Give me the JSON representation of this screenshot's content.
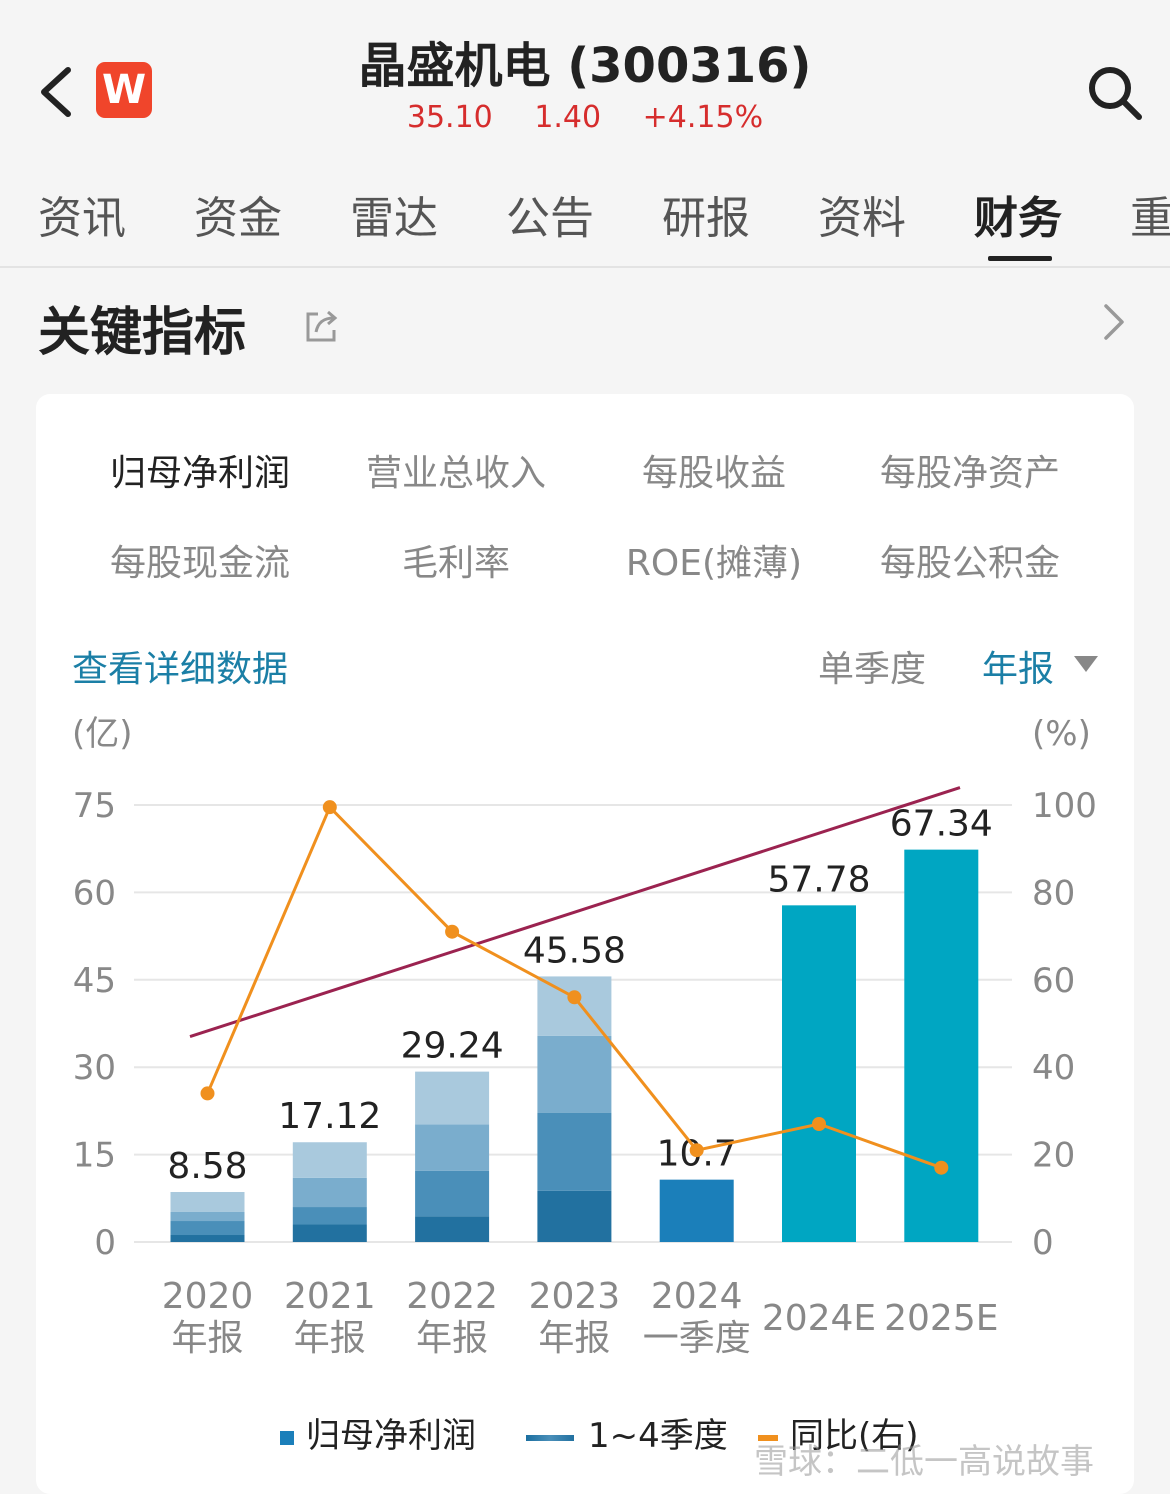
{
  "header": {
    "title": "晶盛机电 (300316)",
    "logo_text": "W",
    "price": "35.10",
    "change": "1.40",
    "change_pct": "+4.15%",
    "icons": {
      "back": "back-icon",
      "search": "search-icon"
    }
  },
  "tabs": [
    {
      "label": "资讯"
    },
    {
      "label": "资金"
    },
    {
      "label": "雷达"
    },
    {
      "label": "公告"
    },
    {
      "label": "研报"
    },
    {
      "label": "资料"
    },
    {
      "label": "财务",
      "active": true
    },
    {
      "label": "重"
    }
  ],
  "section": {
    "title": "关键指标",
    "icons": {
      "share": "share-icon",
      "more": "chevron-right-icon"
    }
  },
  "metrics": [
    {
      "label": "归母净利润",
      "active": true
    },
    {
      "label": "营业总收入"
    },
    {
      "label": "每股收益"
    },
    {
      "label": "每股净资产"
    },
    {
      "label": "每股现金流"
    },
    {
      "label": "毛利率"
    },
    {
      "label": "ROE(摊薄)"
    },
    {
      "label": "每股公积金"
    }
  ],
  "view_detail": "查看详细数据",
  "period": {
    "single": "单季度",
    "annual": "年报"
  },
  "chart_data": {
    "type": "bar",
    "y_left_unit": "(亿)",
    "y_right_unit": "(%)",
    "ylim_left": [
      0,
      75
    ],
    "ylim_right": [
      0,
      100
    ],
    "yticks_left": [
      "75",
      "60",
      "45",
      "30",
      "15",
      "0"
    ],
    "yticks_right": [
      "100",
      "80",
      "60",
      "40",
      "20",
      "0"
    ],
    "categories": [
      {
        "line1": "2020",
        "line2": "年报"
      },
      {
        "line1": "2021",
        "line2": "年报"
      },
      {
        "line1": "2022",
        "line2": "年报"
      },
      {
        "line1": "2023",
        "line2": "年报"
      },
      {
        "line1": "2024",
        "line2": "一季度"
      },
      {
        "line1": "2024E",
        "line2": ""
      },
      {
        "line1": "2025E",
        "line2": ""
      }
    ],
    "totals": [
      8.58,
      17.12,
      29.24,
      45.58,
      10.7,
      57.78,
      67.34
    ],
    "total_labels": [
      "8.58",
      "17.12",
      "29.24",
      "45.58",
      "10.7",
      "57.78",
      "67.34"
    ],
    "quarter_stacks": [
      [
        1.2,
        2.4,
        1.6,
        3.38
      ],
      [
        3.0,
        3.0,
        5.0,
        6.12
      ],
      [
        4.4,
        7.8,
        8.0,
        9.04
      ],
      [
        8.8,
        13.4,
        13.2,
        10.18
      ],
      [
        10.7
      ],
      [],
      []
    ],
    "yoy_pct": [
      34.0,
      99.5,
      71.0,
      56.0,
      21.0,
      27.0,
      17.0
    ],
    "trend_pct": [
      47.0,
      104.0
    ],
    "colors": {
      "q1": "#2271a0",
      "q2": "#4a8fb9",
      "q3": "#7aadcd",
      "q4": "#a9c9dd",
      "q1_only": "#1b7fba",
      "forecast": "#00a6c2",
      "yoy": "#f0901e",
      "trend": "#9b2350",
      "grid": "#e6e6e6"
    },
    "legend": [
      "归母净利润",
      "1~4季度",
      "同比(右)"
    ]
  },
  "watermark": "雪球：二低一高说故事"
}
